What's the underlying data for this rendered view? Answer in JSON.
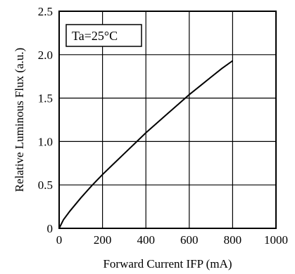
{
  "chart_data": {
    "type": "line",
    "title": "",
    "xlabel": "Forward Current  IFP (mA)",
    "ylabel": "Relative Luminous Flux (a.u.)",
    "xlim": [
      0,
      1000
    ],
    "ylim": [
      0,
      2.5
    ],
    "x_ticks": [
      "0",
      "200",
      "400",
      "600",
      "800",
      "1000"
    ],
    "y_ticks": [
      "0",
      "0.5",
      "1.0",
      "1.5",
      "2.0",
      "2.5"
    ],
    "grid": true,
    "annotation": "Ta=25°C",
    "series": [
      {
        "x": [
          0,
          20,
          50,
          100,
          150,
          200,
          250,
          300,
          350,
          400,
          450,
          500,
          550,
          600,
          650,
          700,
          750,
          800
        ],
        "y": [
          0,
          0.1,
          0.2,
          0.35,
          0.49,
          0.62,
          0.74,
          0.86,
          0.98,
          1.1,
          1.21,
          1.32,
          1.43,
          1.54,
          1.64,
          1.74,
          1.84,
          1.93
        ]
      }
    ]
  }
}
